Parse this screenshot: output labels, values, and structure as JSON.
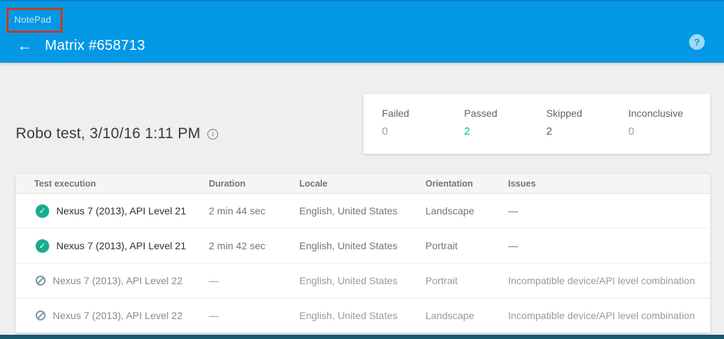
{
  "header": {
    "app_label": "NotePad",
    "back_icon": "←",
    "title": "Matrix #658713",
    "help_icon": "?"
  },
  "page": {
    "title": "Robo test, 3/10/16 1:11 PM",
    "info_icon": "i"
  },
  "summary": {
    "items": [
      {
        "label": "Failed",
        "value": "0"
      },
      {
        "label": "Passed",
        "value": "2"
      },
      {
        "label": "Skipped",
        "value": "2"
      },
      {
        "label": "Inconclusive",
        "value": "0"
      }
    ]
  },
  "table": {
    "columns": [
      "Test execution",
      "Duration",
      "Locale",
      "Orientation",
      "Issues"
    ],
    "rows": [
      {
        "status": "passed",
        "device": "Nexus 7 (2013), API Level 21",
        "duration": "2 min 44 sec",
        "locale": "English, United States",
        "orientation": "Landscape",
        "issues": "—"
      },
      {
        "status": "passed",
        "device": "Nexus 7 (2013), API Level 21",
        "duration": "2 min 42 sec",
        "locale": "English, United States",
        "orientation": "Portrait",
        "issues": "—"
      },
      {
        "status": "skipped",
        "device": "Nexus 7 (2013), API Level 22",
        "duration": "—",
        "locale": "English, United States",
        "orientation": "Portrait",
        "issues": "Incompatible device/API level combination"
      },
      {
        "status": "skipped",
        "device": "Nexus 7 (2013), API Level 22",
        "duration": "—",
        "locale": "English, United States",
        "orientation": "Landscape",
        "issues": "Incompatible device/API level combination"
      }
    ]
  },
  "colors": {
    "appbar_blue": "#0398e6",
    "appbar_top_edge": "#0280c6",
    "annotation_red": "#c43b20",
    "passed_teal": "#00bfa5",
    "check_icon_green": "#18ab8e",
    "blocked_icon_gray": "#7e97a6",
    "page_background": "#edeff1",
    "bottom_strip": "#175a70"
  }
}
